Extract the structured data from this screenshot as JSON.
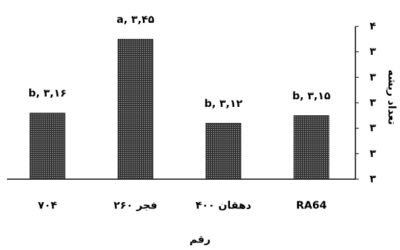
{
  "chart_data": {
    "type": "bar",
    "categories": [
      "۷۰۴",
      "فجر ۲۶۰",
      "دهقان ۴۰۰",
      "RA64"
    ],
    "values": [
      3.16,
      3.45,
      3.12,
      3.15
    ],
    "value_labels": [
      "b, ۳,۱۶",
      "a, ۳,۴۵",
      "b, ۳,۱۲",
      "b, ۳,۱۵"
    ],
    "xlabel": "رقم",
    "ylabel": "تعداد ریشه",
    "ylim": [
      2.9,
      3.5
    ],
    "yticks": [
      {
        "value": 2.9,
        "label": "۳"
      },
      {
        "value": 3.0,
        "label": "۳"
      },
      {
        "value": 3.1,
        "label": "۳"
      },
      {
        "value": 3.2,
        "label": "۳"
      },
      {
        "value": 3.3,
        "label": "۳"
      },
      {
        "value": 3.4,
        "label": "۳"
      },
      {
        "value": 3.5,
        "label": "۴"
      }
    ],
    "color": "#000000"
  }
}
